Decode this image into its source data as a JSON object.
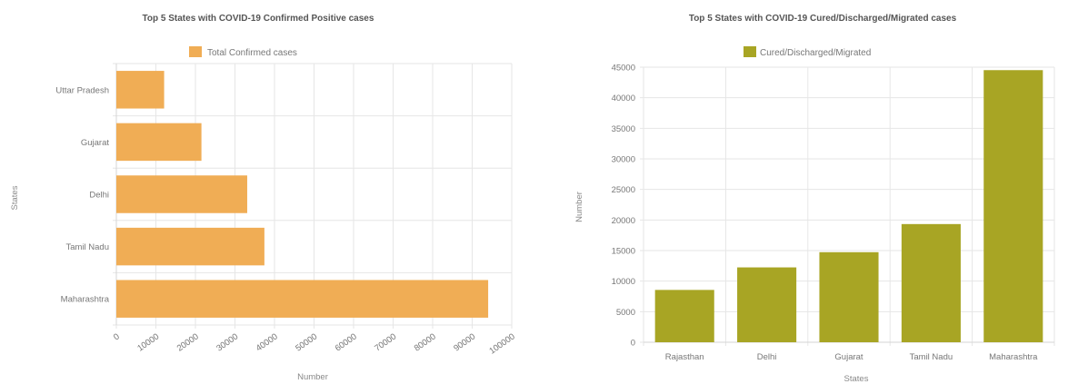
{
  "chart_data": [
    {
      "type": "bar",
      "orientation": "horizontal",
      "title": "Top 5 States with COVID-19 Confirmed Positive cases",
      "xlabel": "Number",
      "ylabel": "States",
      "categories": [
        "Uttar Pradesh",
        "Gujarat",
        "Delhi",
        "Tamil Nadu",
        "Maharashtra"
      ],
      "series": [
        {
          "name": "Total Confirmed cases",
          "values": [
            12088,
            21521,
            33097,
            37445,
            94041
          ],
          "color": "#f0ad55"
        }
      ],
      "xlim": [
        0,
        100000
      ],
      "ticks": [
        "0",
        "10000",
        "20000",
        "30000",
        "40000",
        "50000",
        "60000",
        "70000",
        "80000",
        "90000",
        "100000"
      ],
      "grid": true,
      "legend": "top-center"
    },
    {
      "type": "bar",
      "orientation": "vertical",
      "title": "Top 5 States with COVID-19 Cured/Discharged/Migrated cases",
      "xlabel": "States",
      "ylabel": "Number",
      "categories": [
        "Rajasthan",
        "Delhi",
        "Gujarat",
        "Tamil Nadu",
        "Maharashtra"
      ],
      "series": [
        {
          "name": "Cured/Discharged/Migrated",
          "values": [
            8560,
            12245,
            14735,
            19333,
            44517
          ],
          "color": "#a8a524"
        }
      ],
      "ylim": [
        0,
        45000
      ],
      "ticks": [
        "0",
        "5000",
        "10000",
        "15000",
        "20000",
        "25000",
        "30000",
        "35000",
        "40000",
        "45000"
      ],
      "grid": true,
      "legend": "top-center"
    }
  ]
}
